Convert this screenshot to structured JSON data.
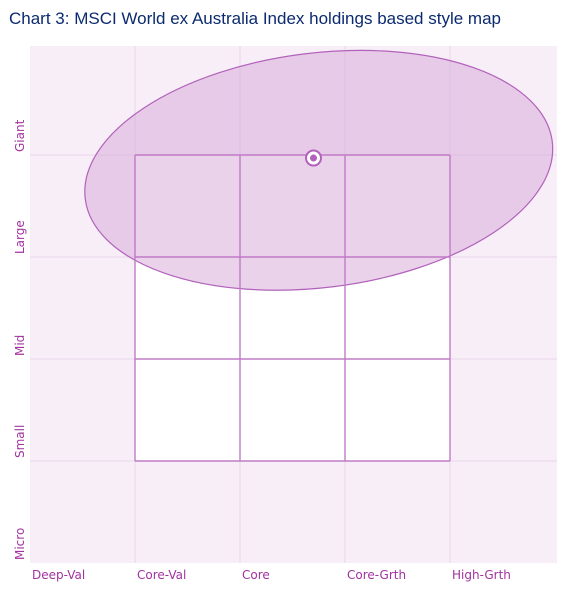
{
  "title": "Chart 3: MSCI World ex Australia Index holdings based style map",
  "chart_data": {
    "type": "scatter",
    "title": "Chart 3: MSCI World ex Australia Index holdings based style map",
    "x_ticks": [
      "Deep-Val",
      "Core-Val",
      "Core",
      "Core-Grth",
      "High-Grth"
    ],
    "y_ticks": [
      "Micro",
      "Small",
      "Mid",
      "Large",
      "Giant"
    ],
    "xlim": [
      0,
      5
    ],
    "ylim": [
      0,
      5
    ],
    "style_box": {
      "x": [
        1,
        4
      ],
      "y": [
        1,
        4
      ]
    },
    "centroid": {
      "x": 2.7,
      "y": 3.97
    },
    "ownership_zone": {
      "x_range": [
        0.5,
        5
      ],
      "y_range": [
        2.7,
        5
      ]
    },
    "grid": true,
    "colors": {
      "background": "#f7eef7",
      "gridline": "#e8d6e8",
      "box_stroke": "#c07bc6",
      "zone_fill": "#d5a6d8",
      "zone_stroke": "#b262bb",
      "label": "#a2329f",
      "title": "#0b2a6f"
    }
  }
}
